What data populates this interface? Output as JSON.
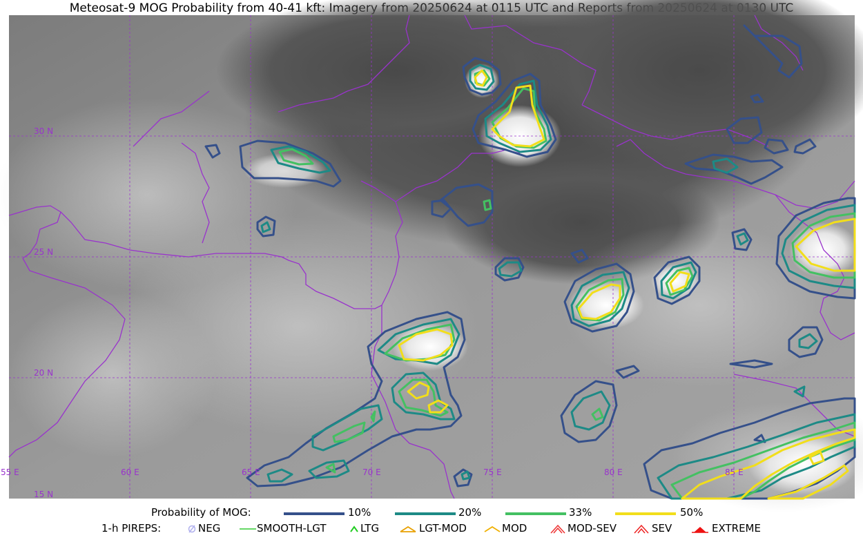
{
  "title": "Meteosat-9 MOG Probability from 40-41 kft: Imagery from 20250624 at 0115 UTC and Reports from 20250624 at 0130 UTC",
  "map": {
    "lat_labels": [
      "30 N",
      "25 N",
      "20 N",
      "15 N"
    ],
    "lon_labels": [
      "55 E",
      "60 E",
      "65 E",
      "70 E",
      "75 E",
      "80 E",
      "85 E"
    ],
    "colors": {
      "border": "#9933cc",
      "grid": "#9933cc",
      "p10": "#35508a",
      "p20": "#1d8a86",
      "p33": "#44c062",
      "p50": "#f2de1a"
    }
  },
  "legend": {
    "prob_label": "Probability of MOG:",
    "levels": [
      "10%",
      "20%",
      "33%",
      "50%"
    ],
    "pirep_label": "1-h PIREPS:",
    "pireps": [
      {
        "label": "NEG",
        "icon": "neg-icon",
        "color": "#b0b0ee"
      },
      {
        "label": "SMOOTH-LGT",
        "icon": "smooth-lgt-icon",
        "color": "#33cc33"
      },
      {
        "label": "LTG",
        "icon": "ltg-icon",
        "color": "#22cc22"
      },
      {
        "label": "LGT-MOD",
        "icon": "lgt-mod-icon",
        "color": "#e8a000"
      },
      {
        "label": "MOD",
        "icon": "mod-icon",
        "color": "#f0b000"
      },
      {
        "label": "MOD-SEV",
        "icon": "mod-sev-icon",
        "color": "#ee3333"
      },
      {
        "label": "SEV",
        "icon": "sev-icon",
        "color": "#ee2222"
      },
      {
        "label": "EXTREME",
        "icon": "extreme-icon",
        "color": "#ee1111"
      }
    ]
  }
}
